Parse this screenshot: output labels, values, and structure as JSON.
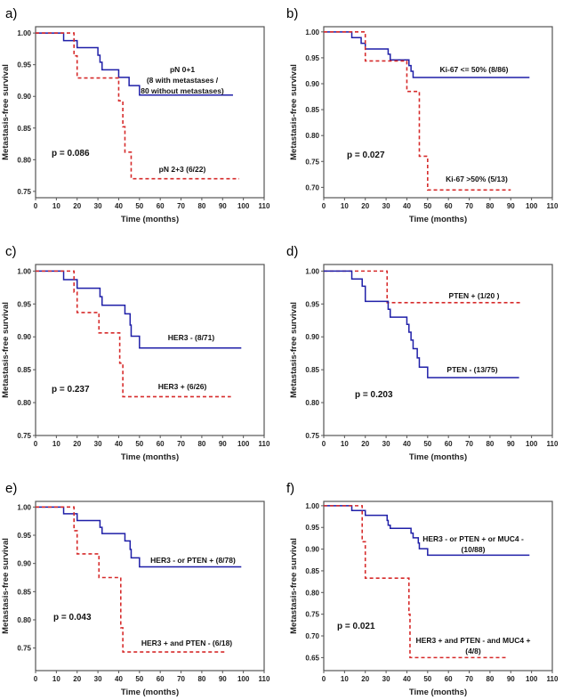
{
  "colors": {
    "blue": "#1f1fa8",
    "red": "#d62b2b",
    "axis": "#555555"
  },
  "chart_data": [
    {
      "panel": "a)",
      "type": "line",
      "step": true,
      "xlabel": "Time (months)",
      "ylabel": "Metastasis-free survival",
      "xlim": [
        0,
        110
      ],
      "ylim": [
        0.74,
        1.01
      ],
      "xticks": [
        0,
        10,
        20,
        30,
        40,
        50,
        60,
        70,
        80,
        90,
        100,
        110
      ],
      "yticks": [
        "0.75",
        "0.80",
        "0.85",
        "0.90",
        "0.95",
        "1.00"
      ],
      "p_value": "p = 0.086",
      "series": [
        {
          "name_lines": [
            "pN 0+1",
            "(8 with metastases /",
            "80 without metastases)"
          ],
          "color": "blue",
          "style": "solid",
          "points": [
            [
              0,
              1
            ],
            [
              13.5,
              0.988
            ],
            [
              20,
              0.977
            ],
            [
              30,
              0.965
            ],
            [
              31,
              0.954
            ],
            [
              32,
              0.942
            ],
            [
              40,
              0.93
            ],
            [
              45,
              0.917
            ],
            [
              50,
              0.902
            ],
            [
              95,
              0.902
            ]
          ]
        },
        {
          "name_lines": [
            "pN 2+3 (6/22)"
          ],
          "color": "red",
          "style": "dashed",
          "points": [
            [
              0,
              1
            ],
            [
              18.5,
              0.964
            ],
            [
              20,
              0.929
            ],
            [
              40,
              0.893
            ],
            [
              42,
              0.852
            ],
            [
              43,
              0.812
            ],
            [
              46,
              0.77
            ],
            [
              98,
              0.77
            ]
          ]
        }
      ]
    },
    {
      "panel": "b)",
      "type": "line",
      "step": true,
      "xlabel": "Time (months)",
      "ylabel": "Metastasis-free survival",
      "xlim": [
        0,
        110
      ],
      "ylim": [
        0.68,
        1.01
      ],
      "xticks": [
        0,
        10,
        20,
        30,
        40,
        50,
        60,
        70,
        80,
        90,
        100,
        110
      ],
      "yticks": [
        "0.70",
        "0.75",
        "0.80",
        "0.85",
        "0.90",
        "0.95",
        "1.00"
      ],
      "p_value": "p = 0.027",
      "series": [
        {
          "name_lines": [
            "Ki-67 <= 50% (8/86)"
          ],
          "color": "blue",
          "style": "solid",
          "points": [
            [
              0,
              1
            ],
            [
              13.5,
              0.989
            ],
            [
              18,
              0.978
            ],
            [
              20,
              0.967
            ],
            [
              31,
              0.957
            ],
            [
              32,
              0.946
            ],
            [
              41,
              0.935
            ],
            [
              42,
              0.924
            ],
            [
              43,
              0.912
            ],
            [
              99,
              0.912
            ]
          ]
        },
        {
          "name_lines": [
            "Ki-67 >50% (5/13)"
          ],
          "color": "red",
          "style": "dashed",
          "points": [
            [
              0,
              1
            ],
            [
              20,
              0.944
            ],
            [
              40,
              0.885
            ],
            [
              46,
              0.76
            ],
            [
              50,
              0.695
            ],
            [
              90,
              0.695
            ]
          ]
        }
      ]
    },
    {
      "panel": "c)",
      "type": "line",
      "step": true,
      "xlabel": "Time (months)",
      "ylabel": "Metastasis-free survival",
      "xlim": [
        0,
        110
      ],
      "ylim": [
        0.75,
        1.01
      ],
      "xticks": [
        0,
        10,
        20,
        30,
        40,
        50,
        60,
        70,
        80,
        90,
        100,
        110
      ],
      "yticks": [
        "0.75",
        "0.80",
        "0.85",
        "0.90",
        "0.95",
        "1.00"
      ],
      "p_value": "p = 0.237",
      "series": [
        {
          "name_lines": [
            "HER3 -  (8/71)"
          ],
          "color": "blue",
          "style": "solid",
          "points": [
            [
              0,
              1
            ],
            [
              13.5,
              0.987
            ],
            [
              20,
              0.974
            ],
            [
              31,
              0.961
            ],
            [
              32,
              0.948
            ],
            [
              43,
              0.935
            ],
            [
              45.5,
              0.918
            ],
            [
              46,
              0.901
            ],
            [
              50,
              0.883
            ],
            [
              99,
              0.883
            ]
          ]
        },
        {
          "name_lines": [
            "HER3 +  (6/26)"
          ],
          "color": "red",
          "style": "dashed",
          "points": [
            [
              0,
              1
            ],
            [
              18.5,
              0.968
            ],
            [
              20,
              0.937
            ],
            [
              30.5,
              0.906
            ],
            [
              40.5,
              0.86
            ],
            [
              42,
              0.809
            ],
            [
              94,
              0.809
            ]
          ]
        }
      ]
    },
    {
      "panel": "d)",
      "type": "line",
      "step": true,
      "xlabel": "Time (months)",
      "ylabel": "Metastasis-free survival",
      "xlim": [
        0,
        110
      ],
      "ylim": [
        0.75,
        1.01
      ],
      "xticks": [
        0,
        10,
        20,
        30,
        40,
        50,
        60,
        70,
        80,
        90,
        100,
        110
      ],
      "yticks": [
        "0.75",
        "0.80",
        "0.85",
        "0.90",
        "0.95",
        "1.00"
      ],
      "p_value": "p = 0.203",
      "series": [
        {
          "name_lines": [
            "PTEN +  (1/20 )"
          ],
          "color": "red",
          "style": "dashed",
          "points": [
            [
              0,
              1
            ],
            [
              30.5,
              0.952
            ],
            [
              95,
              0.952
            ]
          ]
        },
        {
          "name_lines": [
            "PTEN - (13/75)"
          ],
          "color": "blue",
          "style": "solid",
          "points": [
            [
              0,
              1
            ],
            [
              13.5,
              0.988
            ],
            [
              18.5,
              0.977
            ],
            [
              20,
              0.954
            ],
            [
              31,
              0.942
            ],
            [
              32,
              0.93
            ],
            [
              40,
              0.919
            ],
            [
              41,
              0.907
            ],
            [
              42,
              0.895
            ],
            [
              43,
              0.882
            ],
            [
              45,
              0.868
            ],
            [
              46,
              0.854
            ],
            [
              50,
              0.838
            ],
            [
              94,
              0.838
            ]
          ]
        }
      ]
    },
    {
      "panel": "e)",
      "type": "line",
      "step": true,
      "xlabel": "Time (months)",
      "ylabel": "Metastasis-free survival",
      "xlim": [
        0,
        110
      ],
      "ylim": [
        0.71,
        1.01
      ],
      "xticks": [
        0,
        10,
        20,
        30,
        40,
        50,
        60,
        70,
        80,
        90,
        100,
        110
      ],
      "yticks": [
        "0.75",
        "0.80",
        "0.85",
        "0.90",
        "0.95",
        "1.00"
      ],
      "p_value": "p = 0.043",
      "series": [
        {
          "name_lines": [
            "HER3 -  or PTEN + (8/78)"
          ],
          "color": "blue",
          "style": "solid",
          "points": [
            [
              0,
              1
            ],
            [
              13.5,
              0.988
            ],
            [
              20,
              0.976
            ],
            [
              31,
              0.964
            ],
            [
              32,
              0.953
            ],
            [
              43,
              0.94
            ],
            [
              45.5,
              0.925
            ],
            [
              46,
              0.91
            ],
            [
              50,
              0.894
            ],
            [
              99,
              0.894
            ]
          ]
        },
        {
          "name_lines": [
            "HER3 +  and PTEN - (6/18)"
          ],
          "color": "red",
          "style": "dashed",
          "points": [
            [
              0,
              1
            ],
            [
              18.5,
              0.958
            ],
            [
              20,
              0.917
            ],
            [
              30.5,
              0.875
            ],
            [
              41,
              0.786
            ],
            [
              42,
              0.743
            ],
            [
              91,
              0.743
            ]
          ]
        }
      ]
    },
    {
      "panel": "f)",
      "type": "line",
      "step": true,
      "xlabel": "Time (months)",
      "ylabel": "Metastasis-free survival",
      "xlim": [
        0,
        110
      ],
      "ylim": [
        0.62,
        1.01
      ],
      "xticks": [
        0,
        10,
        20,
        30,
        40,
        50,
        60,
        70,
        80,
        90,
        100,
        110
      ],
      "yticks": [
        "0.65",
        "0.70",
        "0.75",
        "0.80",
        "0.85",
        "0.90",
        "0.95",
        "1.00"
      ],
      "p_value": "p = 0.021",
      "series": [
        {
          "name_lines": [
            "HER3 -  or PTEN + or MUC4 -",
            "(10/88)"
          ],
          "color": "blue",
          "style": "solid",
          "points": [
            [
              0,
              1
            ],
            [
              13.5,
              0.989
            ],
            [
              20,
              0.978
            ],
            [
              30.5,
              0.966
            ],
            [
              31,
              0.955
            ],
            [
              32,
              0.948
            ],
            [
              42,
              0.937
            ],
            [
              43,
              0.926
            ],
            [
              45.5,
              0.914
            ],
            [
              46,
              0.901
            ],
            [
              50,
              0.886
            ],
            [
              99,
              0.886
            ]
          ]
        },
        {
          "name_lines": [
            "HER3 +  and PTEN - and MUC4 +",
            "(4/8)"
          ],
          "color": "red",
          "style": "dashed",
          "points": [
            [
              0,
              1
            ],
            [
              18.5,
              0.917
            ],
            [
              20,
              0.833
            ],
            [
              41,
              0.75
            ],
            [
              41.5,
              0.65
            ],
            [
              88,
              0.65
            ]
          ]
        }
      ]
    }
  ]
}
